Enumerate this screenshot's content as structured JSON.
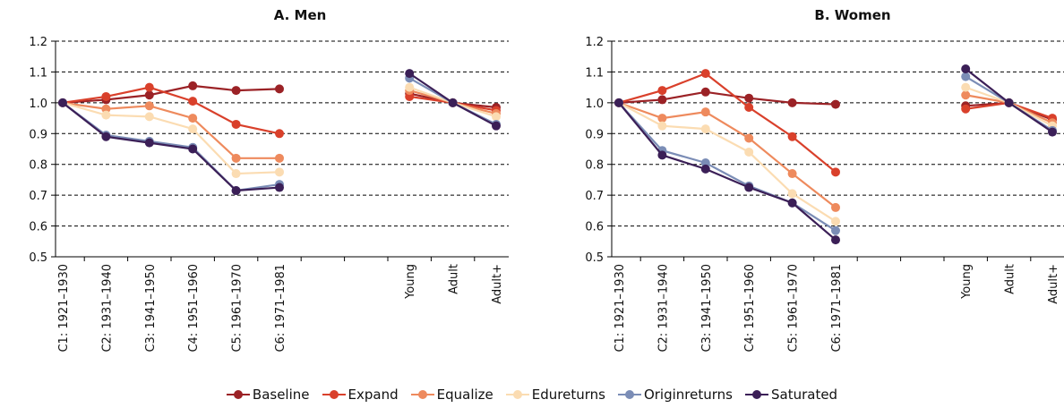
{
  "chart_data": [
    {
      "type": "line",
      "title": "A. Men",
      "ylim": [
        0.5,
        1.2
      ],
      "yticks": [
        "0.5",
        "0.6",
        "0.7",
        "0.8",
        "0.9",
        "1.0",
        "1.1",
        "1.2"
      ],
      "grid": "horizontal dashed",
      "categories": [
        "C1: 1921–1930",
        "C2: 1931–1940",
        "C3: 1941–1950",
        "C4: 1951–1960",
        "C5: 1961–1970",
        "C6: 1971–1981",
        "",
        "",
        "Young",
        "Adult",
        "Adult+"
      ],
      "series": [
        {
          "name": "Baseline",
          "values": [
            1.0,
            1.01,
            1.025,
            1.055,
            1.04,
            1.045,
            null,
            null,
            1.03,
            1.0,
            0.985
          ]
        },
        {
          "name": "Expand",
          "values": [
            1.0,
            1.02,
            1.05,
            1.005,
            0.93,
            0.9,
            null,
            null,
            1.02,
            1.0,
            0.975
          ]
        },
        {
          "name": "Equalize",
          "values": [
            1.0,
            0.98,
            0.99,
            0.95,
            0.82,
            0.82,
            null,
            null,
            1.04,
            1.0,
            0.965
          ]
        },
        {
          "name": "Edureturns",
          "values": [
            1.0,
            0.96,
            0.955,
            0.915,
            0.77,
            0.775,
            null,
            null,
            1.05,
            1.0,
            0.955
          ]
        },
        {
          "name": "Originreturns",
          "values": [
            1.0,
            0.895,
            0.875,
            0.855,
            0.715,
            0.735,
            null,
            null,
            1.08,
            1.0,
            0.93
          ]
        },
        {
          "name": "Saturated",
          "values": [
            1.0,
            0.89,
            0.87,
            0.85,
            0.715,
            0.725,
            null,
            null,
            1.095,
            1.0,
            0.925
          ]
        }
      ]
    },
    {
      "type": "line",
      "title": "B. Women",
      "ylim": [
        0.5,
        1.2
      ],
      "yticks": [
        "0.5",
        "0.6",
        "0.7",
        "0.8",
        "0.9",
        "1.0",
        "1.1",
        "1.2"
      ],
      "grid": "horizontal dashed",
      "categories": [
        "C1: 1921–1930",
        "C2: 1931–1940",
        "C3: 1941–1950",
        "C4: 1951–1960",
        "C5: 1961–1970",
        "C6: 1971–1981",
        "",
        "",
        "Young",
        "Adult",
        "Adult+"
      ],
      "series": [
        {
          "name": "Baseline",
          "values": [
            1.0,
            1.01,
            1.035,
            1.015,
            1.0,
            0.995,
            null,
            null,
            0.99,
            1.0,
            0.945
          ]
        },
        {
          "name": "Expand",
          "values": [
            1.0,
            1.04,
            1.095,
            0.985,
            0.89,
            0.775,
            null,
            null,
            0.98,
            1.0,
            0.95
          ]
        },
        {
          "name": "Equalize",
          "values": [
            1.0,
            0.95,
            0.97,
            0.885,
            0.77,
            0.66,
            null,
            null,
            1.025,
            1.0,
            0.935
          ]
        },
        {
          "name": "Edureturns",
          "values": [
            1.0,
            0.925,
            0.915,
            0.84,
            0.705,
            0.615,
            null,
            null,
            1.05,
            1.0,
            0.925
          ]
        },
        {
          "name": "Originreturns",
          "values": [
            1.0,
            0.845,
            0.805,
            0.73,
            0.675,
            0.585,
            null,
            null,
            1.085,
            1.0,
            0.91
          ]
        },
        {
          "name": "Saturated",
          "values": [
            1.0,
            0.83,
            0.785,
            0.725,
            0.675,
            0.555,
            null,
            null,
            1.11,
            1.0,
            0.905
          ]
        }
      ]
    }
  ],
  "legend": {
    "placement": "bottom-center",
    "items": [
      {
        "label": "Baseline",
        "color": "#9b2226"
      },
      {
        "label": "Expand",
        "color": "#d9402b"
      },
      {
        "label": "Equalize",
        "color": "#ee8a5d"
      },
      {
        "label": "Edureturns",
        "color": "#fbdcb2"
      },
      {
        "label": "Originreturns",
        "color": "#7b8db6"
      },
      {
        "label": "Saturated",
        "color": "#3b1f57"
      }
    ]
  }
}
